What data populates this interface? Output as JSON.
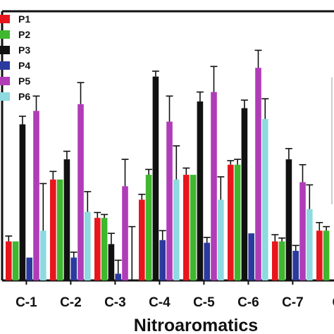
{
  "chart_data": {
    "type": "bar",
    "title": "",
    "xlabel": "Nitroaromatics",
    "ylabel": "",
    "categories": [
      "C-1",
      "C-2",
      "C-3",
      "C-4",
      "C-5",
      "C-6",
      "C-7",
      "C"
    ],
    "ylim": [
      0,
      400
    ],
    "grid": false,
    "legend_position": "top-left",
    "series": [
      {
        "name": "P1",
        "color": "#e8161c",
        "values": [
          58,
          150,
          93,
          120,
          157,
          172,
          58,
          74
        ],
        "errors": [
          8,
          12,
          8,
          8,
          10,
          6,
          10,
          12
        ]
      },
      {
        "name": "P2",
        "color": "#3fb72e",
        "values": [
          58,
          150,
          93,
          157,
          157,
          172,
          58,
          74
        ],
        "errors": [
          0,
          0,
          5,
          8,
          0,
          8,
          5,
          6
        ]
      },
      {
        "name": "P3",
        "color": "#111111",
        "values": [
          232,
          180,
          54,
          303,
          266,
          256,
          180,
          0
        ],
        "errors": [
          12,
          12,
          16,
          8,
          14,
          12,
          16,
          0
        ]
      },
      {
        "name": "P4",
        "color": "#2b3a9e",
        "values": [
          34,
          34,
          10,
          60,
          56,
          70,
          44,
          0
        ],
        "errors": [
          0,
          8,
          20,
          14,
          8,
          0,
          8,
          0
        ]
      },
      {
        "name": "P5",
        "color": "#b03cb8",
        "values": [
          252,
          262,
          140,
          236,
          280,
          316,
          146,
          0
        ],
        "errors": [
          22,
          32,
          40,
          38,
          38,
          26,
          26,
          0
        ]
      },
      {
        "name": "P6",
        "color": "#8fd9e0",
        "values": [
          74,
          102,
          0,
          150,
          120,
          240,
          106,
          0
        ],
        "errors": [
          70,
          30,
          80,
          50,
          34,
          30,
          36,
          0
        ]
      }
    ]
  }
}
